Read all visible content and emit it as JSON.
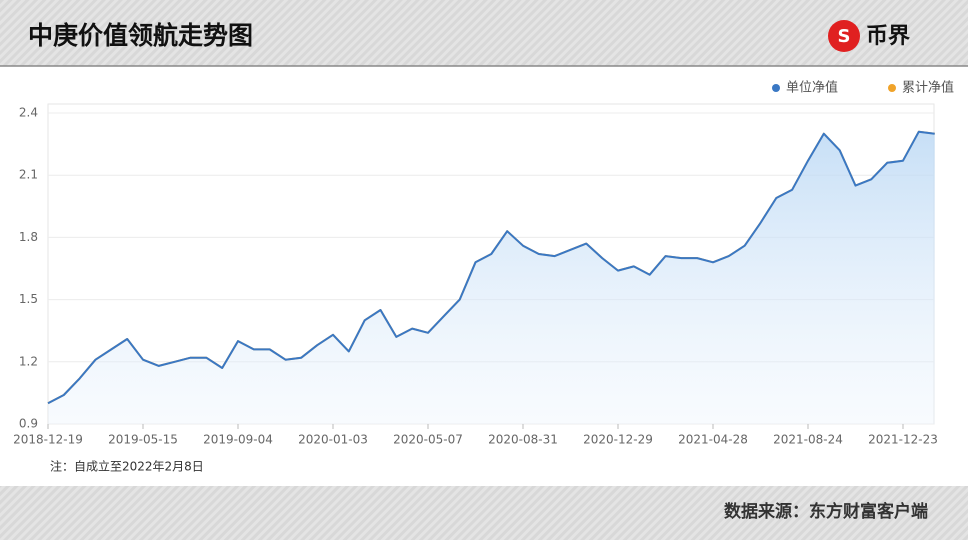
{
  "chart_data": {
    "type": "line",
    "title": "中庚价值领航走势图",
    "brand": "币界",
    "note": "注：自成立至2022年2月8日",
    "source": "数据来源：东方财富客户端",
    "categories": [
      "2018-12-19",
      null,
      null,
      null,
      null,
      null,
      "2019-05-15",
      null,
      null,
      null,
      null,
      null,
      "2019-09-04",
      null,
      null,
      null,
      null,
      null,
      "2020-01-03",
      null,
      null,
      null,
      null,
      null,
      "2020-05-07",
      null,
      null,
      null,
      null,
      null,
      "2020-08-31",
      null,
      null,
      null,
      null,
      null,
      "2020-12-29",
      null,
      null,
      null,
      null,
      null,
      "2021-04-28",
      null,
      null,
      null,
      null,
      null,
      "2021-08-24",
      null,
      null,
      null,
      null,
      null,
      "2021-12-23",
      null,
      null
    ],
    "series": [
      {
        "name": "累计净值",
        "color": "#f0a32a",
        "values": [
          1.0,
          1.04,
          1.12,
          1.21,
          1.26,
          1.31,
          1.21,
          1.18,
          1.2,
          1.22,
          1.22,
          1.17,
          1.3,
          1.26,
          1.26,
          1.21,
          1.22,
          1.28,
          1.33,
          1.25,
          1.4,
          1.45,
          1.32,
          1.36,
          1.34,
          1.42,
          1.5,
          1.68,
          1.72,
          1.83,
          1.76,
          1.72,
          1.71,
          1.74,
          1.77,
          1.7,
          1.64,
          1.66,
          1.62,
          1.71,
          1.7,
          1.7,
          1.68,
          1.71,
          1.76,
          1.87,
          1.99,
          2.03,
          2.17,
          2.3,
          2.22,
          2.05,
          2.08,
          2.16,
          2.17,
          2.31,
          2.3
        ]
      },
      {
        "name": "单位净值",
        "color": "#3a78c4",
        "values": [
          1.0,
          1.04,
          1.12,
          1.21,
          1.26,
          1.31,
          1.21,
          1.18,
          1.2,
          1.22,
          1.22,
          1.17,
          1.3,
          1.26,
          1.26,
          1.21,
          1.22,
          1.28,
          1.33,
          1.25,
          1.4,
          1.45,
          1.32,
          1.36,
          1.34,
          1.42,
          1.5,
          1.68,
          1.72,
          1.83,
          1.76,
          1.72,
          1.71,
          1.74,
          1.77,
          1.7,
          1.64,
          1.66,
          1.62,
          1.71,
          1.7,
          1.7,
          1.68,
          1.71,
          1.76,
          1.87,
          1.99,
          2.03,
          2.17,
          2.3,
          2.22,
          2.05,
          2.08,
          2.16,
          2.17,
          2.31,
          2.3
        ]
      }
    ],
    "ylim": [
      0.9,
      2.4
    ],
    "yticks": [
      0.9,
      1.2,
      1.5,
      1.8,
      2.1,
      2.4
    ],
    "grid": true
  }
}
